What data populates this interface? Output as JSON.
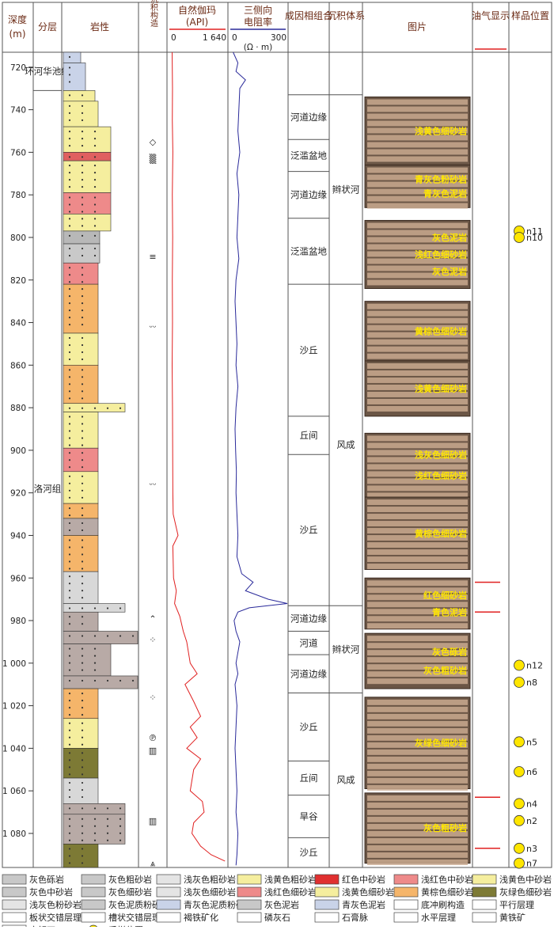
{
  "headers": {
    "depth": "深度",
    "depth_unit": "(m)",
    "layer": "分层",
    "lithology": "岩性",
    "sedimentary_structure": "沉积构造",
    "gamma": "自然伽玛",
    "gamma_unit": "(API)",
    "gamma_min": "0",
    "gamma_max": "1 640",
    "resistivity": "三侧向",
    "resistivity2": "电阻率",
    "res_min": "0",
    "res_max": "300",
    "res_unit": "(Ω · m)",
    "facies_assemblage": "成因相组合",
    "sedimentary_system": "沉积体系",
    "photos": "图片",
    "oil_gas": "油气显示",
    "sample": "样品位置"
  },
  "chart_data": {
    "type": "line",
    "depth_ticks": [
      "720",
      "740",
      "760",
      "780",
      "800",
      "820",
      "840",
      "860",
      "880",
      "900",
      "920",
      "940",
      "960",
      "980",
      "1 000",
      "1 020",
      "1 040",
      "1 060",
      "1 080"
    ],
    "depth_values": [
      720,
      740,
      760,
      780,
      800,
      820,
      840,
      860,
      880,
      900,
      920,
      940,
      960,
      980,
      1000,
      1020,
      1040,
      1060,
      1080
    ],
    "depth_range": [
      713,
      1096
    ],
    "gamma_range": [
      0,
      1640
    ],
    "res_range": [
      0,
      300
    ],
    "gamma_curve": [
      [
        713,
        80
      ],
      [
        730,
        90
      ],
      [
        745,
        85
      ],
      [
        760,
        100
      ],
      [
        780,
        85
      ],
      [
        800,
        95
      ],
      [
        820,
        85
      ],
      [
        840,
        90
      ],
      [
        860,
        80
      ],
      [
        880,
        90
      ],
      [
        900,
        95
      ],
      [
        920,
        100
      ],
      [
        930,
        110
      ],
      [
        940,
        250
      ],
      [
        945,
        100
      ],
      [
        960,
        120
      ],
      [
        966,
        200
      ],
      [
        972,
        150
      ],
      [
        978,
        300
      ],
      [
        985,
        400
      ],
      [
        990,
        500
      ],
      [
        1000,
        600
      ],
      [
        1005,
        800
      ],
      [
        1010,
        450
      ],
      [
        1018,
        700
      ],
      [
        1025,
        900
      ],
      [
        1030,
        600
      ],
      [
        1035,
        800
      ],
      [
        1040,
        500
      ],
      [
        1045,
        900
      ],
      [
        1050,
        700
      ],
      [
        1060,
        600
      ],
      [
        1065,
        950
      ],
      [
        1070,
        1000
      ],
      [
        1075,
        700
      ],
      [
        1080,
        650
      ],
      [
        1086,
        900
      ],
      [
        1090,
        1200
      ],
      [
        1093,
        1600
      ]
    ],
    "res_curve": [
      [
        713,
        15
      ],
      [
        718,
        40
      ],
      [
        722,
        30
      ],
      [
        726,
        80
      ],
      [
        730,
        50
      ],
      [
        740,
        45
      ],
      [
        750,
        40
      ],
      [
        760,
        50
      ],
      [
        770,
        35
      ],
      [
        780,
        45
      ],
      [
        790,
        40
      ],
      [
        800,
        35
      ],
      [
        810,
        45
      ],
      [
        820,
        30
      ],
      [
        830,
        25
      ],
      [
        840,
        30
      ],
      [
        850,
        35
      ],
      [
        860,
        30
      ],
      [
        870,
        40
      ],
      [
        880,
        30
      ],
      [
        890,
        25
      ],
      [
        900,
        28
      ],
      [
        910,
        32
      ],
      [
        920,
        30
      ],
      [
        930,
        35
      ],
      [
        940,
        40
      ],
      [
        950,
        35
      ],
      [
        958,
        60
      ],
      [
        962,
        120
      ],
      [
        966,
        80
      ],
      [
        970,
        200
      ],
      [
        972,
        300
      ],
      [
        974,
        100
      ],
      [
        976,
        40
      ],
      [
        980,
        20
      ],
      [
        985,
        30
      ],
      [
        990,
        50
      ],
      [
        1000,
        30
      ],
      [
        1005,
        40
      ],
      [
        1010,
        25
      ],
      [
        1020,
        35
      ],
      [
        1030,
        30
      ],
      [
        1040,
        25
      ],
      [
        1050,
        30
      ],
      [
        1060,
        35
      ],
      [
        1070,
        30
      ],
      [
        1080,
        40
      ],
      [
        1090,
        35
      ],
      [
        1095,
        30
      ]
    ],
    "layers": [
      {
        "name": "环河华池组",
        "top": 713,
        "bottom": 731
      },
      {
        "name": "洛河组",
        "top": 731,
        "bottom": 1096
      }
    ],
    "facies": [
      {
        "name": "河道边缘",
        "top": 733,
        "bottom": 754
      },
      {
        "name": "泛滥盆地",
        "top": 754,
        "bottom": 769
      },
      {
        "name": "河道边缘",
        "top": 769,
        "bottom": 791
      },
      {
        "name": "泛滥盆地",
        "top": 791,
        "bottom": 822
      },
      {
        "name": "沙丘",
        "top": 822,
        "bottom": 884
      },
      {
        "name": "丘间",
        "top": 884,
        "bottom": 902
      },
      {
        "name": "沙丘",
        "top": 902,
        "bottom": 973
      },
      {
        "name": "河道边缘",
        "top": 973,
        "bottom": 985
      },
      {
        "name": "河道",
        "top": 985,
        "bottom": 996
      },
      {
        "name": "河道边缘",
        "top": 996,
        "bottom": 1014
      },
      {
        "name": "沙丘",
        "top": 1014,
        "bottom": 1046
      },
      {
        "name": "丘间",
        "top": 1046,
        "bottom": 1062
      },
      {
        "name": "旱谷",
        "top": 1062,
        "bottom": 1082
      },
      {
        "name": "沙丘",
        "top": 1082,
        "bottom": 1096
      }
    ],
    "systems": [
      {
        "name": "辫状河",
        "top": 733,
        "bottom": 822
      },
      {
        "name": "风成",
        "top": 822,
        "bottom": 973
      },
      {
        "name": "辫状河",
        "top": 973,
        "bottom": 1014
      },
      {
        "name": "风成",
        "top": 1014,
        "bottom": 1096
      }
    ],
    "lithology": [
      {
        "top": 713,
        "bottom": 718,
        "fill": "#c9d3e8",
        "width": 22
      },
      {
        "top": 718,
        "bottom": 731,
        "fill": "#c9d3e8",
        "width": 28
      },
      {
        "top": 731,
        "bottom": 736,
        "fill": "#f5ee9e",
        "width": 40
      },
      {
        "top": 736,
        "bottom": 748,
        "fill": "#f5ee9e",
        "width": 44
      },
      {
        "top": 748,
        "bottom": 760,
        "fill": "#f5ee9e",
        "width": 60
      },
      {
        "top": 760,
        "bottom": 764,
        "fill": "#e06060",
        "width": 60
      },
      {
        "top": 764,
        "bottom": 779,
        "fill": "#f5ee9e",
        "width": 60
      },
      {
        "top": 779,
        "bottom": 789,
        "fill": "#ee8a8a",
        "width": 60
      },
      {
        "top": 789,
        "bottom": 797,
        "fill": "#f5ee9e",
        "width": 60
      },
      {
        "top": 797,
        "bottom": 803,
        "fill": "#b8b8b8",
        "width": 46
      },
      {
        "top": 803,
        "bottom": 812,
        "fill": "#c9c9c9",
        "width": 46
      },
      {
        "top": 812,
        "bottom": 822,
        "fill": "#ee8a8a",
        "width": 44
      },
      {
        "top": 822,
        "bottom": 845,
        "fill": "#f5b56a",
        "width": 44
      },
      {
        "top": 845,
        "bottom": 860,
        "fill": "#f5ee9e",
        "width": 44
      },
      {
        "top": 860,
        "bottom": 878,
        "fill": "#f5b56a",
        "width": 44
      },
      {
        "top": 878,
        "bottom": 882,
        "fill": "#f5ee9e",
        "width": 78
      },
      {
        "top": 882,
        "bottom": 899,
        "fill": "#f5ee9e",
        "width": 44
      },
      {
        "top": 899,
        "bottom": 910,
        "fill": "#ee8a8a",
        "width": 44
      },
      {
        "top": 910,
        "bottom": 925,
        "fill": "#f5ee9e",
        "width": 44
      },
      {
        "top": 925,
        "bottom": 932,
        "fill": "#f5b56a",
        "width": 44
      },
      {
        "top": 932,
        "bottom": 940,
        "fill": "#b8aaa6",
        "width": 44
      },
      {
        "top": 940,
        "bottom": 957,
        "fill": "#f5b56a",
        "width": 44
      },
      {
        "top": 957,
        "bottom": 972,
        "fill": "#d8d8d8",
        "width": 44
      },
      {
        "top": 972,
        "bottom": 976,
        "fill": "#d8d8d8",
        "width": 78
      },
      {
        "top": 976,
        "bottom": 985,
        "fill": "#b8aaa6",
        "width": 44
      },
      {
        "top": 985,
        "bottom": 991,
        "fill": "#b8aaa6",
        "width": 94
      },
      {
        "top": 991,
        "bottom": 1006,
        "fill": "#b8aaa6",
        "width": 60
      },
      {
        "top": 1006,
        "bottom": 1012,
        "fill": "#b8aaa6",
        "width": 94
      },
      {
        "top": 1012,
        "bottom": 1026,
        "fill": "#f5b56a",
        "width": 44
      },
      {
        "top": 1026,
        "bottom": 1040,
        "fill": "#f5ee9e",
        "width": 44
      },
      {
        "top": 1040,
        "bottom": 1054,
        "fill": "#7d7a35",
        "width": 44
      },
      {
        "top": 1054,
        "bottom": 1066,
        "fill": "#d8d8d8",
        "width": 44
      },
      {
        "top": 1066,
        "bottom": 1071,
        "fill": "#b8aaa6",
        "width": 78
      },
      {
        "top": 1071,
        "bottom": 1085,
        "fill": "#b8aaa6",
        "width": 78
      },
      {
        "top": 1085,
        "bottom": 1096,
        "fill": "#7d7a35",
        "width": 44
      }
    ],
    "structures": [
      {
        "depth": 755,
        "symbol": "◇"
      },
      {
        "depth": 763,
        "symbol": "▒"
      },
      {
        "depth": 809,
        "symbol": "≡"
      },
      {
        "depth": 842,
        "symbol": "ᵕᵕ"
      },
      {
        "depth": 916,
        "symbol": "ᵕᵕ"
      },
      {
        "depth": 979,
        "symbol": "⌃"
      },
      {
        "depth": 989,
        "symbol": "⁘"
      },
      {
        "depth": 1016,
        "symbol": "⁘"
      },
      {
        "depth": 1035,
        "symbol": "℗"
      },
      {
        "depth": 1041,
        "symbol": "▥"
      },
      {
        "depth": 1074,
        "symbol": "▥"
      },
      {
        "depth": 1094,
        "symbol": "⩓"
      }
    ],
    "oil_gas_marks": [
      962,
      976,
      1063,
      1087
    ],
    "samples": [
      {
        "depth": 797,
        "label": "n11"
      },
      {
        "depth": 800,
        "label": "n10"
      },
      {
        "depth": 1001,
        "label": "n12"
      },
      {
        "depth": 1009,
        "label": "n8"
      },
      {
        "depth": 1037,
        "label": "n5"
      },
      {
        "depth": 1051,
        "label": "n6"
      },
      {
        "depth": 1066,
        "label": "n4"
      },
      {
        "depth": 1074,
        "label": "n2"
      },
      {
        "depth": 1087,
        "label": "n3"
      },
      {
        "depth": 1094,
        "label": "n7"
      }
    ],
    "photos": [
      {
        "top": 734,
        "bottom": 766,
        "captions": [
          "浅黄色细砂岩"
        ]
      },
      {
        "top": 766,
        "bottom": 786,
        "captions": [
          "青灰色粉砂岩",
          "青灰色泥岩"
        ]
      },
      {
        "top": 792,
        "bottom": 824,
        "captions": [
          "灰色泥岩",
          "浅红色细砂岩",
          "灰色泥岩"
        ]
      },
      {
        "top": 830,
        "bottom": 858,
        "captions": [
          "黄棕色细砂岩"
        ]
      },
      {
        "top": 858,
        "bottom": 884,
        "captions": [
          "浅黄色细砂岩"
        ]
      },
      {
        "top": 892,
        "bottom": 922,
        "captions": [
          "浅灰色细砂岩",
          "浅红色细砂岩"
        ]
      },
      {
        "top": 922,
        "bottom": 956,
        "captions": [
          "黄棕色细砂岩"
        ]
      },
      {
        "top": 960,
        "bottom": 984,
        "captions": [
          "红色细砂岩",
          "青色泥岩"
        ]
      },
      {
        "top": 986,
        "bottom": 1012,
        "captions": [
          "灰色砾岩",
          "灰色粗砂岩"
        ]
      },
      {
        "top": 1016,
        "bottom": 1059,
        "captions": [
          "灰绿色细砂岩"
        ]
      },
      {
        "top": 1061,
        "bottom": 1094,
        "captions": [
          "灰色粗砂岩"
        ]
      }
    ]
  },
  "legend": [
    {
      "label": "灰色砾岩",
      "fill": "#c8c8c8"
    },
    {
      "label": "灰色粗砂岩",
      "fill": "#c8c8c8"
    },
    {
      "label": "浅灰色粗砂岩",
      "fill": "#e4e4e4"
    },
    {
      "label": "浅黄色粗砂岩",
      "fill": "#f5ee9e"
    },
    {
      "label": "红色中砂岩",
      "fill": "#e03030"
    },
    {
      "label": "浅红色中砂岩",
      "fill": "#ee8a8a"
    },
    {
      "label": "浅黄色中砂岩",
      "fill": "#f5ee9e"
    },
    {
      "label": "灰色中砂岩",
      "fill": "#c8c8c8"
    },
    {
      "label": "灰色细砂岩",
      "fill": "#c8c8c8"
    },
    {
      "label": "浅灰色细砂岩",
      "fill": "#e4e4e4"
    },
    {
      "label": "浅红色细砂岩",
      "fill": "#ee8a8a"
    },
    {
      "label": "浅黄色细砂岩",
      "fill": "#f5ee9e"
    },
    {
      "label": "黄棕色细砂岩",
      "fill": "#f5b56a"
    },
    {
      "label": "灰绿色细砂岩",
      "fill": "#7d7a35"
    },
    {
      "label": "浅灰色粉砂岩",
      "fill": "#e4e4e4"
    },
    {
      "label": "灰色泥质粉砂岩",
      "fill": "#c8c8c8"
    },
    {
      "label": "青灰色泥质粉砂岩",
      "fill": "#c9d3e8"
    },
    {
      "label": "灰色泥岩",
      "fill": "#c8c8c8"
    },
    {
      "label": "青灰色泥岩",
      "fill": "#c9d3e8"
    },
    {
      "label": "底冲刷构造",
      "fill": "#ffffff"
    },
    {
      "label": "平行层理",
      "fill": "#ffffff"
    },
    {
      "label": "板状交错层理",
      "fill": "#ffffff"
    },
    {
      "label": "槽状交错层理",
      "fill": "#ffffff"
    },
    {
      "label": "褐铁矿化",
      "fill": "#ffffff"
    },
    {
      "label": "磷灰石",
      "fill": "#ffffff"
    },
    {
      "label": "石膏脉",
      "fill": "#ffffff"
    },
    {
      "label": "水平层理",
      "fill": "#ffffff"
    },
    {
      "label": "黄铁矿",
      "fill": "#ffffff"
    },
    {
      "label": "方解石",
      "fill": "#ffffff"
    },
    {
      "label": "采样位置",
      "fill": "#ffe600"
    }
  ]
}
